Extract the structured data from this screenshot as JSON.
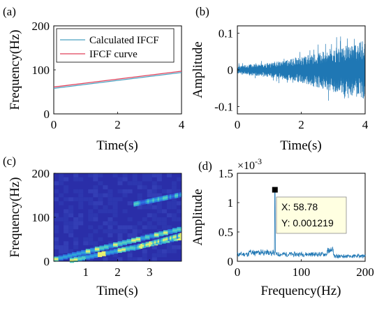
{
  "colors": {
    "calc": "#4aa0c0",
    "curve": "#e0405a",
    "signal": "#1f77b4",
    "tfr_bg": "#2a2ea8",
    "tip_bg": "#ffffe1",
    "tip_border": "#8a8a8a"
  },
  "chart_data": [
    {
      "panel": "a",
      "panel_label": "(a)",
      "type": "line",
      "xlabel": "Time(s)",
      "ylabel": "Frequency(Hz)",
      "xlim": [
        0,
        4
      ],
      "ylim": [
        0,
        200
      ],
      "xticks": [
        "0",
        "2",
        "4"
      ],
      "yticks": [
        "0",
        "100",
        "200"
      ],
      "legend_position": "top",
      "series": [
        {
          "name": "Calculated IFCF",
          "x": [
            0,
            4
          ],
          "y": [
            58,
            94
          ]
        },
        {
          "name": "IFCF curve",
          "x": [
            0,
            4
          ],
          "y": [
            61,
            97
          ]
        }
      ]
    },
    {
      "panel": "b",
      "panel_label": "(b)",
      "type": "line",
      "xlabel": "Time(s)",
      "ylabel": "Amplitude",
      "xlim": [
        0,
        4
      ],
      "ylim": [
        -0.12,
        0.12
      ],
      "xticks": [
        "0",
        "2",
        "4"
      ],
      "yticks": [
        "-0.1",
        "0",
        "0.1"
      ],
      "envelope": {
        "t": [
          0,
          1,
          2,
          3,
          4
        ],
        "amp": [
          0.012,
          0.02,
          0.035,
          0.06,
          0.08
        ]
      }
    },
    {
      "panel": "c",
      "panel_label": "(c)",
      "type": "heatmap",
      "xlabel": "Time(s)",
      "ylabel": "Frequency(Hz)",
      "xlim": [
        0,
        4
      ],
      "ylim": [
        0,
        200
      ],
      "xticks": [
        "1",
        "2",
        "3"
      ],
      "yticks": [
        "0",
        "100",
        "200"
      ],
      "ridges": [
        {
          "t0": 0.0,
          "f0": 5,
          "t1": 4.0,
          "f1": 75,
          "intensity": 0.7
        },
        {
          "t0": 0.5,
          "f0": 2,
          "t1": 4.0,
          "f1": 55,
          "intensity": 0.85
        },
        {
          "t0": 2.5,
          "f0": 30,
          "t1": 4.0,
          "f1": 60,
          "intensity": 0.8
        },
        {
          "t0": 2.5,
          "f0": 130,
          "t1": 4.0,
          "f1": 152,
          "intensity": 0.6
        }
      ]
    },
    {
      "panel": "d",
      "panel_label": "(d)",
      "type": "line",
      "xlabel": "Frequency(Hz)",
      "ylabel": "Amplitude",
      "scale_label": "×10",
      "scale_exponent": "-3",
      "xlim": [
        0,
        200
      ],
      "ylim": [
        0,
        1.5
      ],
      "xticks": [
        "0",
        "100",
        "200"
      ],
      "yticks": [
        "0",
        "0.5",
        "1",
        "1.5"
      ],
      "peak": {
        "x": 58.78,
        "y": 1.219
      },
      "datatip": [
        "X: 58.78",
        "Y: 0.001219"
      ]
    }
  ]
}
